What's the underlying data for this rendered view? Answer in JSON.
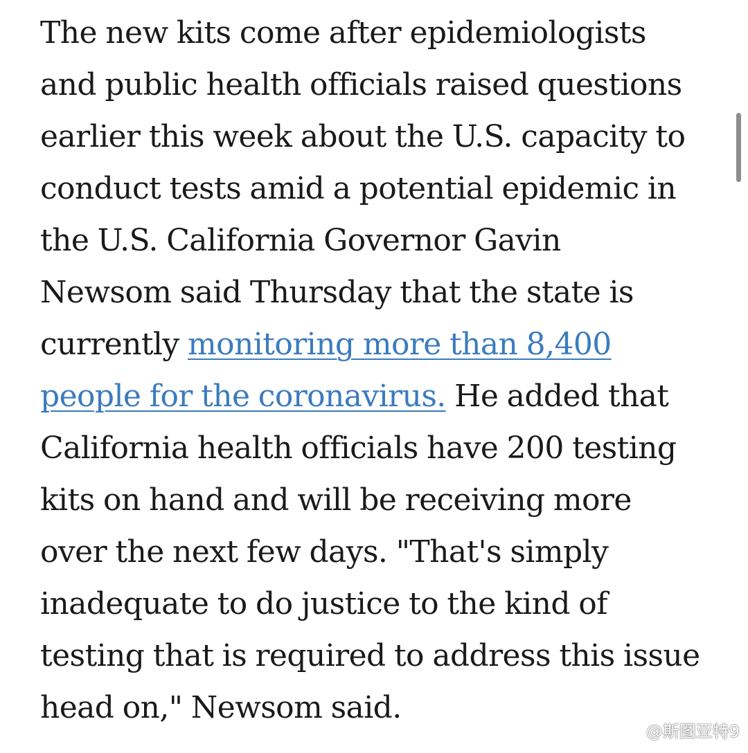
{
  "article": {
    "lines": [
      "The new kits come after epidemiologists",
      "and public health officials raised questions",
      "earlier this week about the U.S. capacity to",
      "conduct tests amid a potential epidemic in",
      "the U.S. California Governor Gavin",
      "Newsom said Thursday that the state is"
    ],
    "line7_prefix": "currently ",
    "link_part1": "monitoring more than 8,400",
    "link_part2": "people for the coronavirus.",
    "line8_suffix": " He added that",
    "lines_after": [
      "California health officials have 200 testing",
      "kits on hand and will be receiving more",
      "over the next few days. \"That's simply",
      "inadequate to do justice to the kind of",
      "testing that is required to address this issue",
      "head on,\" Newsom said."
    ]
  },
  "watermark": {
    "text": "@斯图亚特9",
    "icon": "weibo-icon"
  },
  "colors": {
    "text": "#1a1a1a",
    "link": "#3a7bbf",
    "background": "#ffffff",
    "scrollbar": "#8e8e8e"
  }
}
